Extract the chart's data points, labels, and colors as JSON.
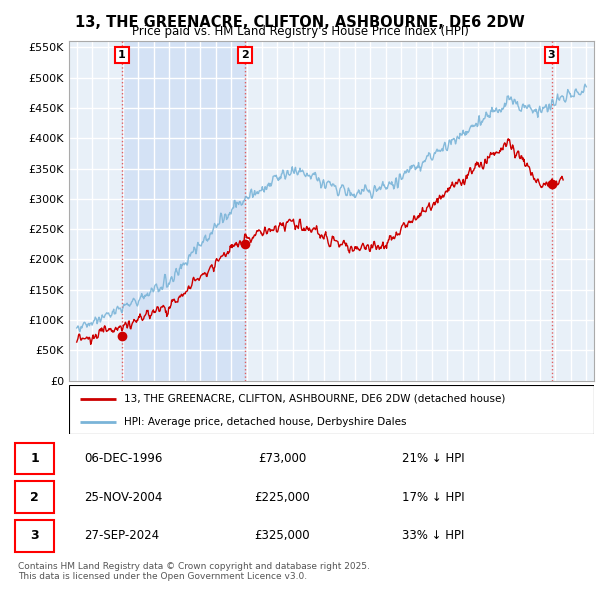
{
  "title": "13, THE GREENACRE, CLIFTON, ASHBOURNE, DE6 2DW",
  "subtitle": "Price paid vs. HM Land Registry's House Price Index (HPI)",
  "legend_line1": "13, THE GREENACRE, CLIFTON, ASHBOURNE, DE6 2DW (detached house)",
  "legend_line2": "HPI: Average price, detached house, Derbyshire Dales",
  "footer": "Contains HM Land Registry data © Crown copyright and database right 2025.\nThis data is licensed under the Open Government Licence v3.0.",
  "transactions": [
    {
      "num": 1,
      "date": "06-DEC-1996",
      "price": 73000,
      "pct": "21%",
      "dir": "↓"
    },
    {
      "num": 2,
      "date": "25-NOV-2004",
      "price": 225000,
      "pct": "17%",
      "dir": "↓"
    },
    {
      "num": 3,
      "date": "27-SEP-2024",
      "price": 325000,
      "pct": "33%",
      "dir": "↓"
    }
  ],
  "sale_dates_decimal": [
    1996.93,
    2004.9,
    2024.75
  ],
  "sale_prices": [
    73000,
    225000,
    325000
  ],
  "hpi_color": "#7ab4d8",
  "price_color": "#cc0000",
  "bg_color": "#ddeeff",
  "shade_color": "#ccddf5",
  "ylim": [
    0,
    560000
  ],
  "xlim_start": 1993.5,
  "xlim_end": 2027.5
}
